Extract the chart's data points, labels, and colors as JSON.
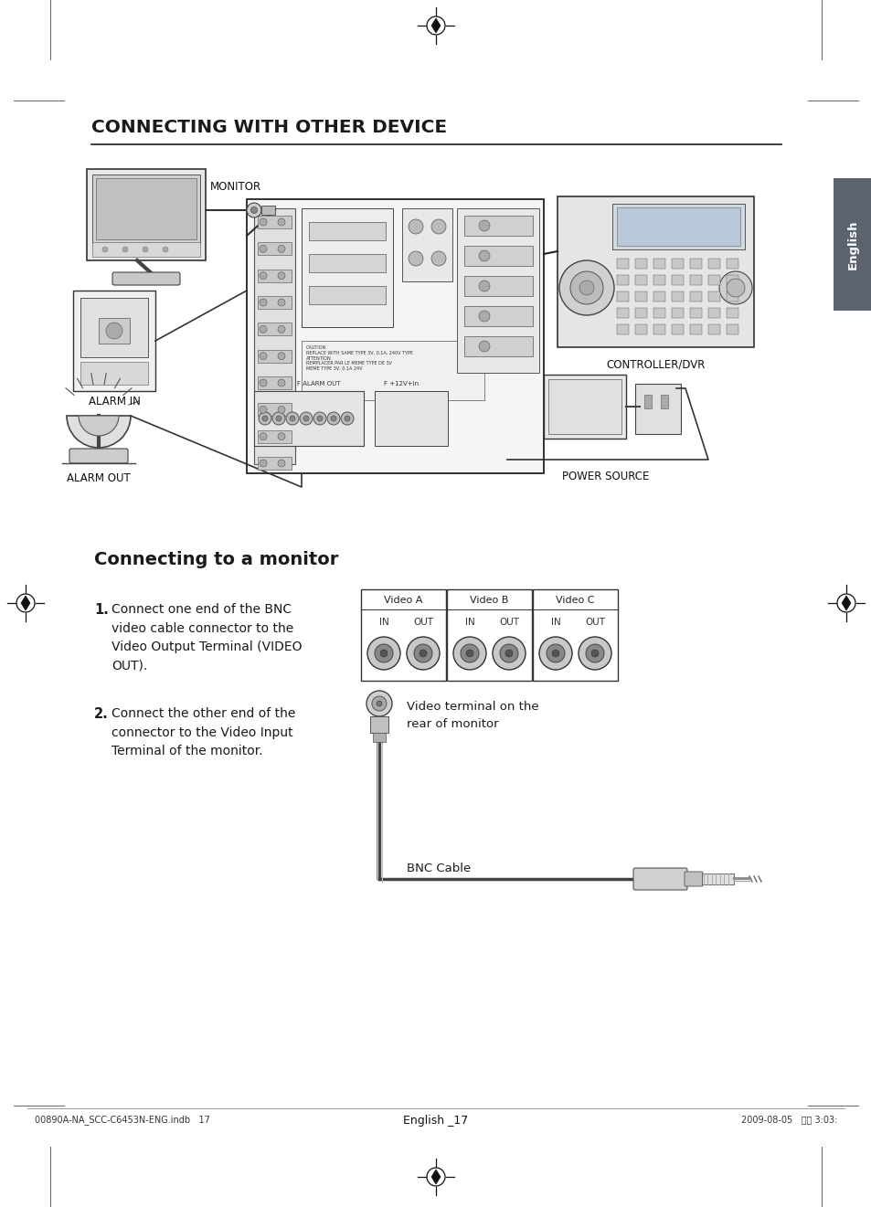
{
  "bg_color": "#ffffff",
  "page_title": "CONNECTING WITH OTHER DEVICE",
  "section_title": "Connecting to a monitor",
  "footer_left": "00890A-NA_SCC-C6453N-ENG.indb   17",
  "footer_right": "2009-08-05   오후 3:03:",
  "footer_center": "English _17",
  "step1_bold": "1.",
  "step1_text": "Connect one end of the BNC\nvideo cable connector to the\nVideo Output Terminal (VIDEO\nOUT).",
  "step2_bold": "2.",
  "step2_text": "Connect the other end of the\nconnector to the Video Input\nTerminal of the monitor.",
  "video_labels": [
    "Video A",
    "Video B",
    "Video C"
  ],
  "annotation1": "Video terminal on the\nrear of monitor",
  "annotation2": "BNC Cable",
  "diagram_labels": {
    "monitor": "MONITOR",
    "alarm_in": "ALARM IN",
    "alarm_out": "ALARM OUT",
    "controller": "CONTROLLER/DVR",
    "power": "POWER SOURCE"
  },
  "english_tab_text": "English",
  "tab_color": "#5b6370"
}
